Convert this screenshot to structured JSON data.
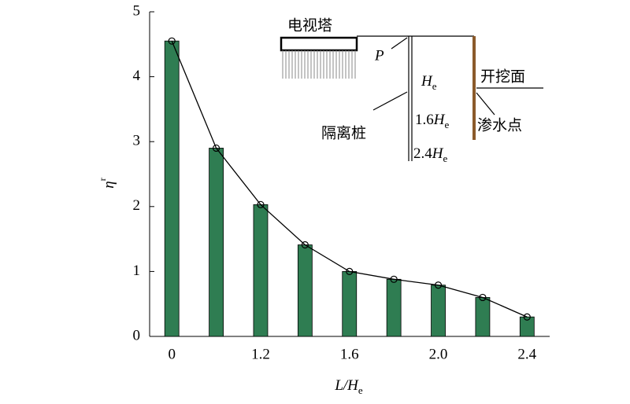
{
  "chart_data": {
    "type": "bar",
    "categories": [
      "0",
      null,
      "1.2",
      null,
      "1.6",
      null,
      "2.0",
      null,
      "2.4"
    ],
    "values": [
      4.55,
      2.9,
      2.03,
      1.41,
      1.0,
      0.88,
      0.79,
      0.6,
      0.3
    ],
    "color": "#2f7d52",
    "line_overlay": true,
    "line_color": "#000000",
    "ylim": [
      0,
      5
    ],
    "yticks": [
      0,
      1,
      2,
      3,
      4,
      5
    ],
    "xlabel": [
      "L/H",
      "e"
    ],
    "ylabel": [
      "η",
      "r"
    ],
    "inset": {
      "tower": "电视塔",
      "point": "P",
      "pile": "隔离桩",
      "excavation": "开挖面",
      "seepage": "渗水点",
      "depths": [
        {
          "label": "H",
          "sub": "e"
        },
        {
          "label": "1.6H",
          "sub": "e"
        },
        {
          "label": "2.4H",
          "sub": "e"
        }
      ]
    }
  }
}
